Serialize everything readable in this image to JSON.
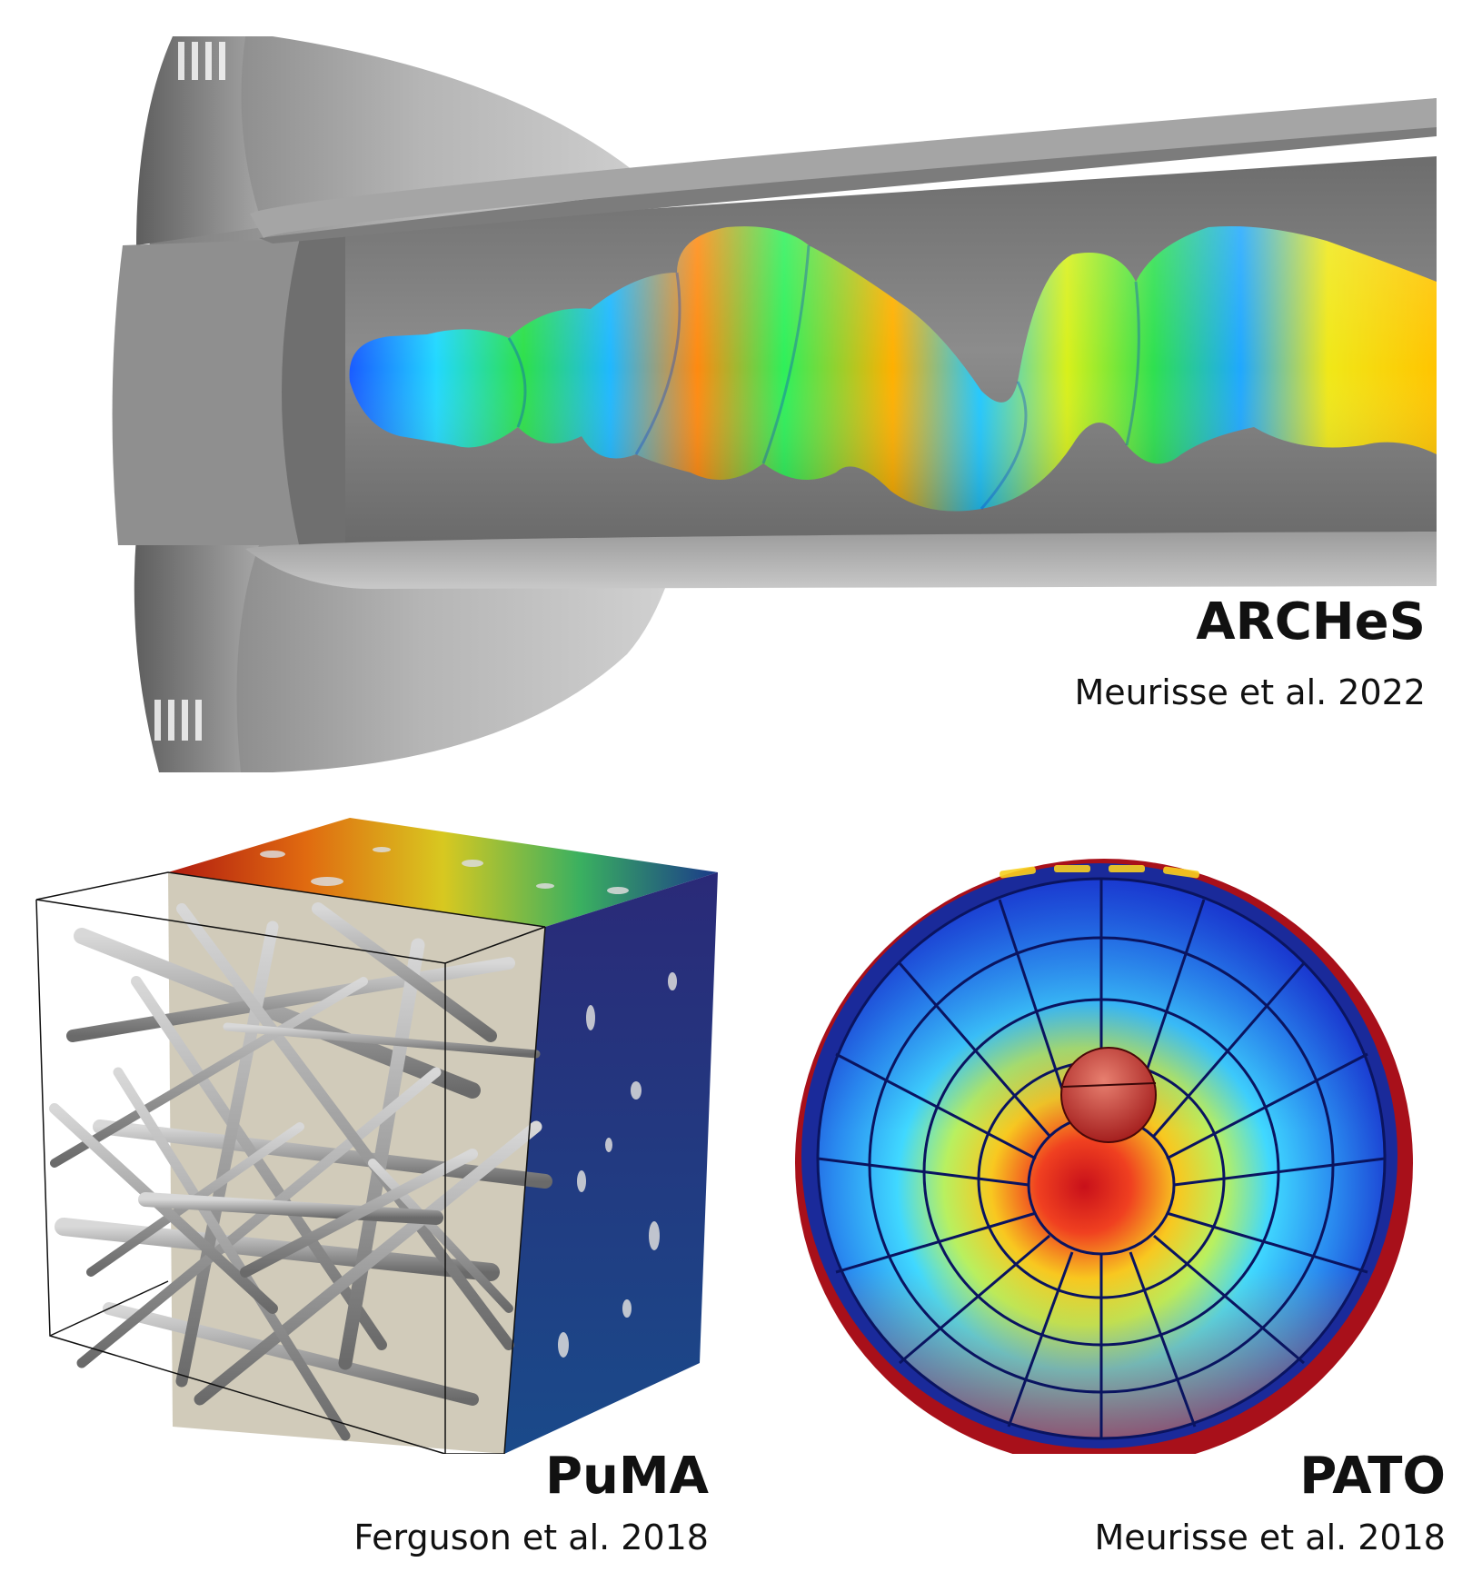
{
  "panels": {
    "arches": {
      "title": "ARCHeS",
      "citation": "Meurisse et al. 2022"
    },
    "puma": {
      "title": "PuMA",
      "citation": "Ferguson et al. 2018"
    },
    "pato": {
      "title": "PATO",
      "citation": "Meurisse et al. 2018"
    }
  },
  "colors": {
    "jet": [
      "#1f3fd6",
      "#1fb8ff",
      "#22e06a",
      "#d8f01a",
      "#ffb400",
      "#e83a10",
      "#a8101a"
    ],
    "gray_geometry": "#9a9a9a"
  }
}
